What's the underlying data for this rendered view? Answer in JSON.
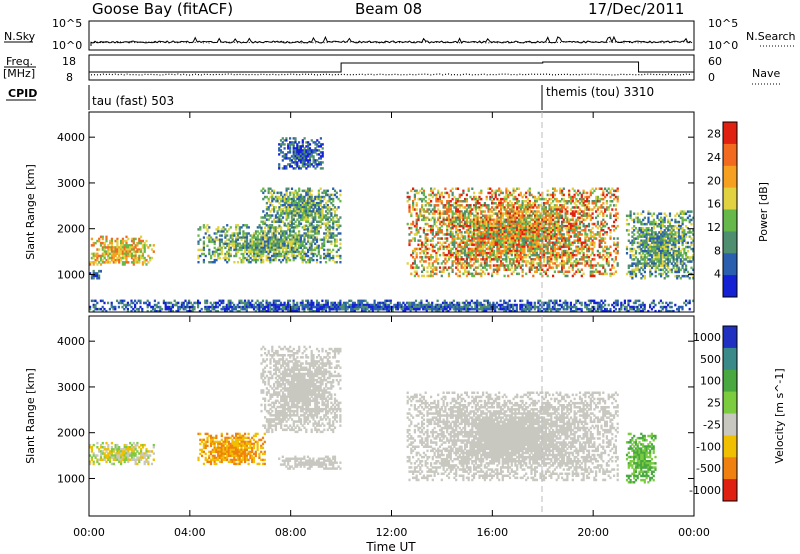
{
  "header": {
    "station": "Goose Bay (fitACF)",
    "beam": "Beam 08",
    "date": "17/Dec/2011"
  },
  "noise_panel": {
    "left_label": "N.Sky",
    "right_label": "N.Search",
    "left_ticks": [
      "10^5",
      "10^0"
    ],
    "right_ticks": [
      "10^5",
      "10^0"
    ]
  },
  "freq_panel": {
    "left_label_line1": "Freq.",
    "left_label_line2": "[MHz]",
    "right_label": "Nave",
    "left_ticks": [
      "18",
      "8"
    ],
    "right_ticks": [
      "60",
      "0"
    ]
  },
  "cpid_panel": {
    "label": "CPID",
    "program1": "tau (fast) 503",
    "program2": "themis (tou) 3310"
  },
  "chart_data": [
    {
      "type": "heatmap",
      "title": "",
      "xlabel": "Time UT",
      "ylabel": "Slant Range [km]",
      "x_ticks": [
        "00:00",
        "04:00",
        "08:00",
        "12:00",
        "16:00",
        "20:00",
        "00:00"
      ],
      "y_ticks": [
        "1000",
        "2000",
        "3000",
        "4000"
      ],
      "xlim_hours": [
        0,
        24
      ],
      "ylim_km": [
        180,
        4550
      ],
      "colorbar": {
        "label": "Power [dB]",
        "ticks": [
          "4",
          "8",
          "12",
          "16",
          "20",
          "24",
          "28"
        ],
        "range": [
          0,
          30
        ],
        "colors": [
          "#1522d4",
          "#2a5fb0",
          "#4f8f70",
          "#66b84a",
          "#e0d240",
          "#f5a020",
          "#f26a20",
          "#e02010"
        ]
      },
      "echo_regions": [
        {
          "t": [
            0.0,
            2.6
          ],
          "r": [
            1200,
            1850
          ],
          "power": "medium-high"
        },
        {
          "t": [
            0.0,
            0.5
          ],
          "r": [
            900,
            1100
          ],
          "power": "low"
        },
        {
          "t": [
            4.3,
            10.0
          ],
          "r": [
            1250,
            2100
          ],
          "power": "low-medium"
        },
        {
          "t": [
            6.8,
            10.0
          ],
          "r": [
            2000,
            2900
          ],
          "power": "low-medium"
        },
        {
          "t": [
            7.5,
            9.3
          ],
          "r": [
            3300,
            4000
          ],
          "power": "low"
        },
        {
          "t": [
            12.6,
            21.0
          ],
          "r": [
            950,
            2900
          ],
          "power": "high"
        },
        {
          "t": [
            21.3,
            24.0
          ],
          "r": [
            900,
            2400
          ],
          "power": "low-medium"
        },
        {
          "t": [
            0.0,
            24.0
          ],
          "r": [
            180,
            450
          ],
          "power": "low"
        }
      ]
    },
    {
      "type": "heatmap",
      "title": "",
      "xlabel": "Time UT",
      "ylabel": "Slant Range [km]",
      "x_ticks": [
        "00:00",
        "04:00",
        "08:00",
        "12:00",
        "16:00",
        "20:00",
        "00:00"
      ],
      "y_ticks": [
        "1000",
        "2000",
        "3000",
        "4000"
      ],
      "xlim_hours": [
        0,
        24
      ],
      "ylim_km": [
        180,
        4550
      ],
      "colorbar": {
        "label": "Velocity [m s^-1]",
        "ticks": [
          "1000",
          "500",
          "100",
          "25",
          "-25",
          "-100",
          "-500",
          "-1000"
        ],
        "colors": [
          "#2030c0",
          "#3a8a8a",
          "#4aa840",
          "#7ccc40",
          "#c8c8c0",
          "#f0c000",
          "#f08010",
          "#e02010"
        ]
      },
      "echo_regions": [
        {
          "t": [
            0.0,
            2.6
          ],
          "r": [
            1300,
            1800
          ],
          "velocity": "-100 to 100"
        },
        {
          "t": [
            4.3,
            7.0
          ],
          "r": [
            1300,
            2000
          ],
          "velocity": "-100 to -500"
        },
        {
          "t": [
            6.8,
            10.0
          ],
          "r": [
            2000,
            3900
          ],
          "velocity": "ground scatter"
        },
        {
          "t": [
            7.5,
            10.0
          ],
          "r": [
            1200,
            1500
          ],
          "velocity": "ground scatter"
        },
        {
          "t": [
            12.6,
            21.0
          ],
          "r": [
            950,
            2900
          ],
          "velocity": "ground scatter"
        },
        {
          "t": [
            21.3,
            22.5
          ],
          "r": [
            900,
            2000
          ],
          "velocity": "100 to 500"
        }
      ]
    }
  ]
}
